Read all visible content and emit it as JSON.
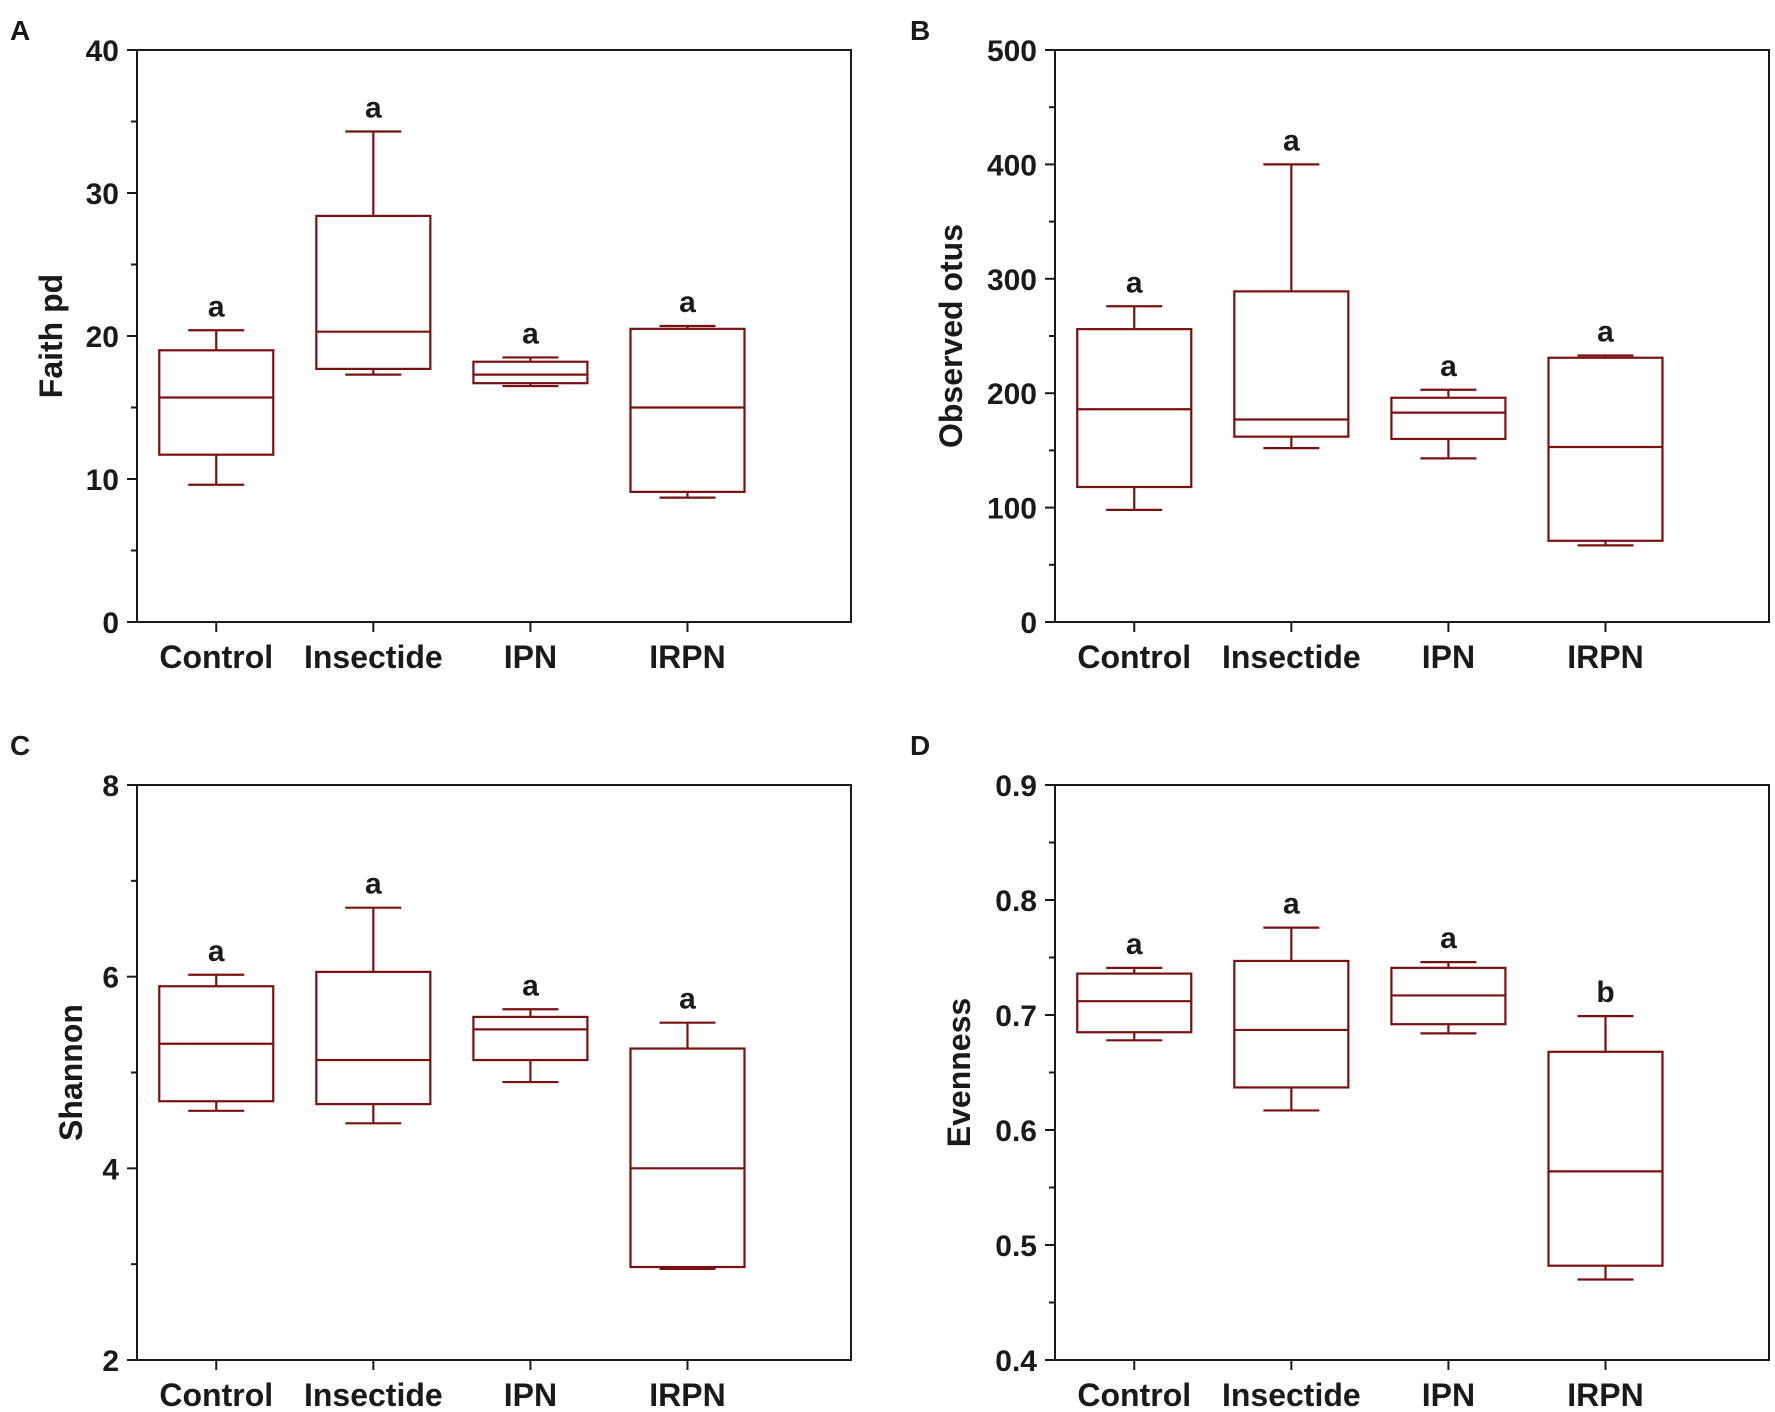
{
  "chart_data": [
    {
      "panel": "A",
      "type": "box",
      "ylabel": "Faith pd",
      "xlabel": "",
      "ylim": [
        0,
        40
      ],
      "yticks": [
        0,
        10,
        20,
        30,
        40
      ],
      "categories": [
        "Control",
        "Insectide",
        "IPN",
        "IRPN"
      ],
      "boxes": [
        {
          "min": 9.6,
          "q1": 11.7,
          "median": 15.7,
          "q3": 19.0,
          "max": 20.4,
          "letter": "a"
        },
        {
          "min": 17.3,
          "q1": 17.7,
          "median": 20.3,
          "q3": 28.4,
          "max": 34.3,
          "letter": "a"
        },
        {
          "min": 16.5,
          "q1": 16.7,
          "median": 17.3,
          "q3": 18.2,
          "max": 18.5,
          "letter": "a"
        },
        {
          "min": 8.7,
          "q1": 9.1,
          "median": 15.0,
          "q3": 20.5,
          "max": 20.7,
          "letter": "a"
        }
      ]
    },
    {
      "panel": "B",
      "type": "box",
      "ylabel": "Observed otus",
      "xlabel": "",
      "ylim": [
        0,
        500
      ],
      "yticks": [
        0,
        100,
        200,
        300,
        400,
        500
      ],
      "categories": [
        "Control",
        "Insectide",
        "IPN",
        "IRPN"
      ],
      "boxes": [
        {
          "min": 98,
          "q1": 118,
          "median": 186,
          "q3": 256,
          "max": 276,
          "letter": "a"
        },
        {
          "min": 152,
          "q1": 162,
          "median": 177,
          "q3": 289,
          "max": 400,
          "letter": "a"
        },
        {
          "min": 143,
          "q1": 160,
          "median": 183,
          "q3": 196,
          "max": 203,
          "letter": "a"
        },
        {
          "min": 67,
          "q1": 71,
          "median": 153,
          "q3": 231,
          "max": 233,
          "letter": "a"
        }
      ]
    },
    {
      "panel": "C",
      "type": "box",
      "ylabel": "Shannon",
      "xlabel": "",
      "ylim": [
        2,
        8
      ],
      "yticks": [
        2,
        4,
        6,
        8
      ],
      "categories": [
        "Control",
        "Insectide",
        "IPN",
        "IRPN"
      ],
      "boxes": [
        {
          "min": 4.6,
          "q1": 4.7,
          "median": 5.3,
          "q3": 5.9,
          "max": 6.02,
          "letter": "a"
        },
        {
          "min": 4.47,
          "q1": 4.67,
          "median": 5.13,
          "q3": 6.05,
          "max": 6.72,
          "letter": "a"
        },
        {
          "min": 4.9,
          "q1": 5.13,
          "median": 5.45,
          "q3": 5.58,
          "max": 5.66,
          "letter": "a"
        },
        {
          "min": 2.95,
          "q1": 2.97,
          "median": 4.0,
          "q3": 5.25,
          "max": 5.52,
          "letter": "a"
        }
      ]
    },
    {
      "panel": "D",
      "type": "box",
      "ylabel": "Evenness",
      "xlabel": "",
      "ylim": [
        0.4,
        0.9
      ],
      "yticks": [
        0.4,
        0.5,
        0.6,
        0.7,
        0.8,
        0.9
      ],
      "categories": [
        "Control",
        "Insectide",
        "IPN",
        "IRPN"
      ],
      "boxes": [
        {
          "min": 0.678,
          "q1": 0.685,
          "median": 0.712,
          "q3": 0.736,
          "max": 0.741,
          "letter": "a"
        },
        {
          "min": 0.617,
          "q1": 0.637,
          "median": 0.687,
          "q3": 0.747,
          "max": 0.776,
          "letter": "a"
        },
        {
          "min": 0.684,
          "q1": 0.692,
          "median": 0.717,
          "q3": 0.741,
          "max": 0.746,
          "letter": "a"
        },
        {
          "min": 0.47,
          "q1": 0.482,
          "median": 0.564,
          "q3": 0.668,
          "max": 0.699,
          "letter": "b"
        }
      ]
    }
  ]
}
